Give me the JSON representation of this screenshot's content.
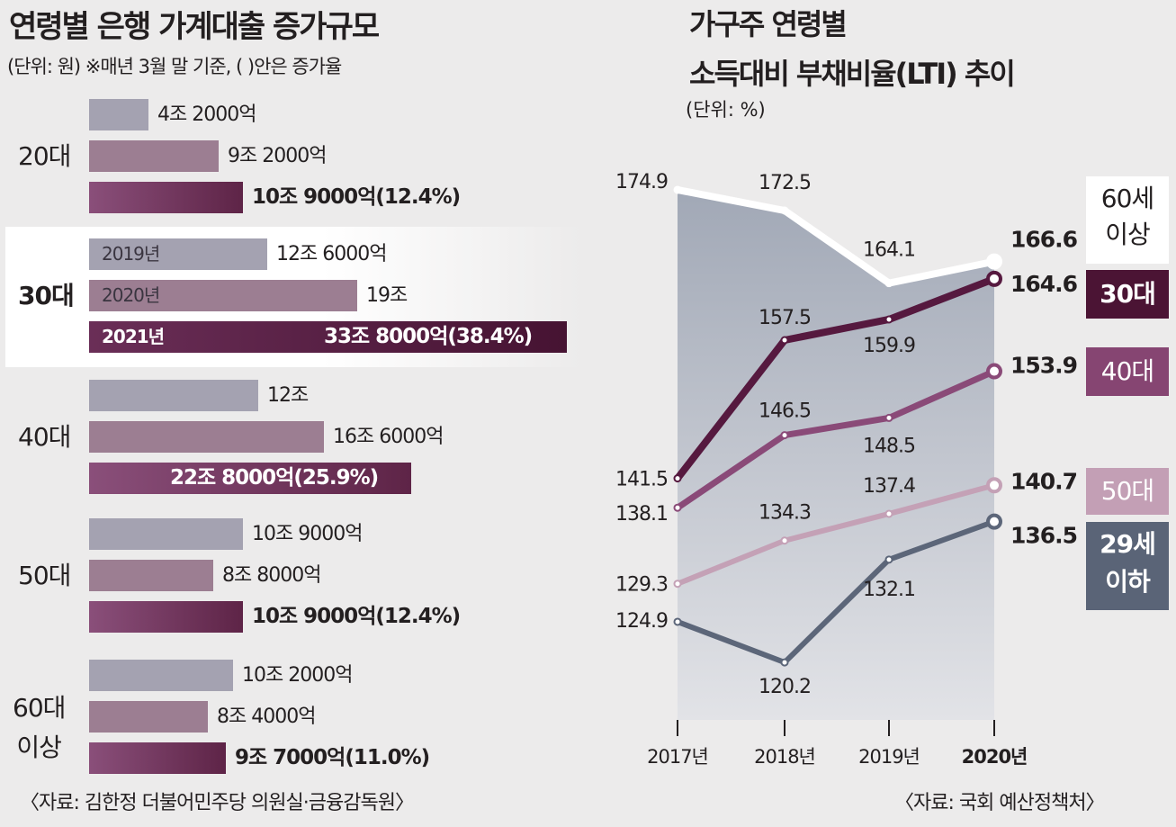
{
  "left": {
    "title": "연령별 은행 가계대출 증가규모",
    "unit": "(단위: 원)  ※매년 3월 말 기준, ( )안은 증가율",
    "source": "〈자료: 김한정 더불어민주당 의원실·금융감독원〉",
    "year_labels": [
      "2019년",
      "2020년",
      "2021년"
    ],
    "groups": [
      {
        "age": "20대",
        "values": [
          4.2,
          9.2,
          10.9
        ],
        "labels": [
          "4조 2000억",
          "9조 2000억",
          "10조 9000억(12.4%)"
        ]
      },
      {
        "age": "30대",
        "values": [
          12.6,
          19,
          33.8
        ],
        "labels": [
          "12조 6000억",
          "19조",
          "33조 8000억(38.4%)"
        ]
      },
      {
        "age": "40대",
        "values": [
          12,
          16.6,
          22.8
        ],
        "labels": [
          "12조",
          "16조 6000억",
          "22조 8000억(25.9%)"
        ]
      },
      {
        "age": "50대",
        "values": [
          10.9,
          8.8,
          10.9
        ],
        "labels": [
          "10조 9000억",
          "8조 8000억",
          "10조 9000억(12.4%)"
        ]
      },
      {
        "age_line1": "60대",
        "age_line2": "이상",
        "values": [
          10.2,
          8.4,
          9.7
        ],
        "labels": [
          "10조 2000억",
          "8조 4000억",
          "9조 7000억(11.0%)"
        ]
      }
    ]
  },
  "right": {
    "title_line1": "가구주 연령별",
    "title_line2": "소득대비 부채비율(LTI) 추이",
    "unit": "(단위: %)",
    "source": "〈자료: 국회 예산정책처〉",
    "legend": {
      "s60_line1": "60세",
      "s60_line2": "이상",
      "s30": "30대",
      "s40": "40대",
      "s50": "50대",
      "s29_line1": "29세",
      "s29_line2": "이하"
    }
  },
  "chart_data": [
    {
      "type": "bar",
      "title": "연령별 은행 가계대출 증가규모",
      "unit": "조원",
      "categories": [
        "20대",
        "30대",
        "40대",
        "50대",
        "60대 이상"
      ],
      "series": [
        {
          "name": "2019년",
          "values": [
            4.2,
            12.6,
            12,
            10.9,
            10.2
          ]
        },
        {
          "name": "2020년",
          "values": [
            9.2,
            19,
            16.6,
            8.8,
            8.4
          ]
        },
        {
          "name": "2021년",
          "values": [
            10.9,
            33.8,
            22.8,
            10.9,
            9.7
          ]
        }
      ],
      "growth_rate_2021": [
        "12.4%",
        "38.4%",
        "25.9%",
        "12.4%",
        "11.0%"
      ]
    },
    {
      "type": "line",
      "title": "가구주 연령별 소득대비 부채비율(LTI) 추이",
      "unit": "%",
      "x": [
        "2017년",
        "2018년",
        "2019년",
        "2020년"
      ],
      "series": [
        {
          "name": "60세 이상",
          "values": [
            174.9,
            172.5,
            164.1,
            166.6
          ],
          "color": "#ffffff"
        },
        {
          "name": "30대",
          "values": [
            141.5,
            157.5,
            159.9,
            164.6
          ],
          "color": "#56193f"
        },
        {
          "name": "40대",
          "values": [
            138.1,
            146.5,
            148.5,
            153.9
          ],
          "color": "#8a4a78"
        },
        {
          "name": "50대",
          "values": [
            129.3,
            134.3,
            137.4,
            140.7
          ],
          "color": "#c4a1b6"
        },
        {
          "name": "29세 이하",
          "values": [
            124.9,
            120.2,
            132.1,
            136.5
          ],
          "color": "#5c6679"
        }
      ],
      "value_labels": {
        "60세 이상": [
          "174.9",
          "172.5",
          "164.1",
          "166.6"
        ],
        "30대": [
          "141.5",
          "157.5",
          "159.9",
          "164.6"
        ],
        "40대": [
          "138.1",
          "146.5",
          "148.5",
          "153.9"
        ],
        "50대": [
          "129.3",
          "134.3",
          "137.4",
          "140.7"
        ],
        "29세 이하": [
          "124.9",
          "120.2",
          "132.1",
          "136.5"
        ]
      }
    }
  ]
}
